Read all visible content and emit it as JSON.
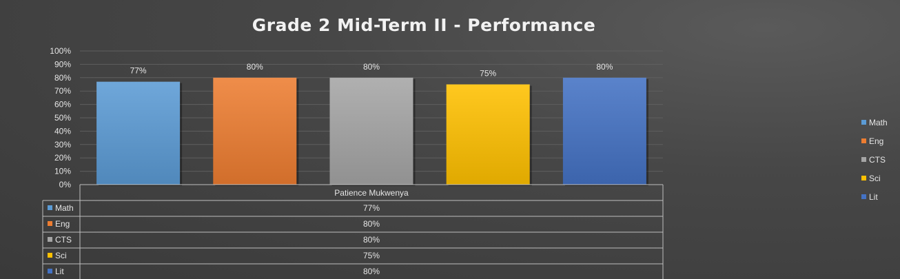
{
  "chart_data": {
    "type": "bar",
    "title": "Grade 2 Mid-Term II - Performance",
    "categories": [
      "Patience Mukwenya"
    ],
    "series": [
      {
        "name": "Math",
        "values": [
          77
        ],
        "label": "77%",
        "color": "#5b9bd5"
      },
      {
        "name": "Eng",
        "values": [
          80
        ],
        "label": "80%",
        "color": "#ed7d31"
      },
      {
        "name": "CTS",
        "values": [
          80
        ],
        "label": "80%",
        "color": "#a5a5a5"
      },
      {
        "name": "Sci",
        "values": [
          75
        ],
        "label": "75%",
        "color": "#ffc000"
      },
      {
        "name": "Lit",
        "values": [
          80
        ],
        "label": "80%",
        "color": "#4472c4"
      }
    ],
    "yticks": [
      "0%",
      "10%",
      "20%",
      "30%",
      "40%",
      "50%",
      "60%",
      "70%",
      "80%",
      "90%",
      "100%"
    ],
    "ylim": [
      0,
      100
    ],
    "grid": true,
    "legend": "right",
    "data_table": true
  }
}
